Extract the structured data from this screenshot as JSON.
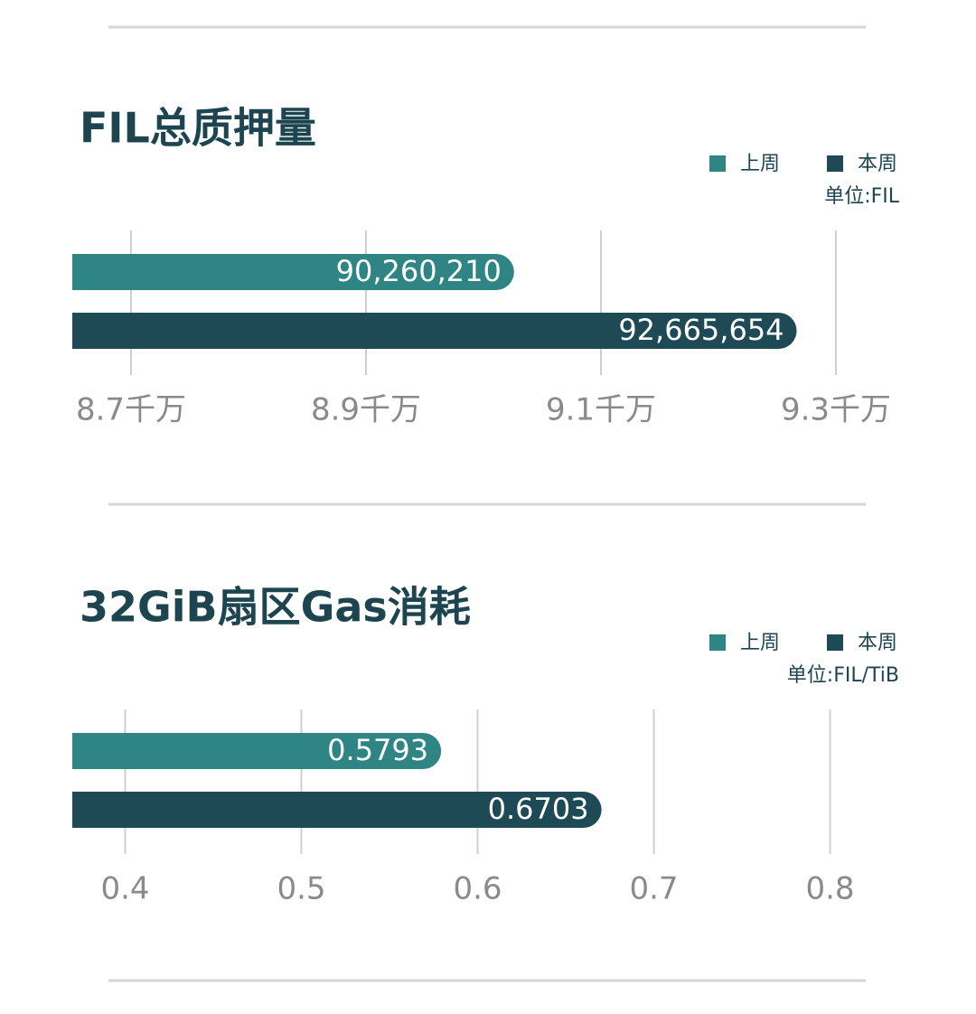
{
  "chart_data": [
    {
      "type": "bar",
      "orientation": "horizontal",
      "title": "FIL总质押量",
      "unit_label": "单位:FIL",
      "categories": [
        null
      ],
      "series": [
        {
          "name": "上周",
          "color": "#2f8484",
          "values": [
            90260210
          ],
          "value_labels": [
            "90,260,210"
          ]
        },
        {
          "name": "本周",
          "color": "#1d4a55",
          "values": [
            92665654
          ],
          "value_labels": [
            "92,665,654"
          ]
        }
      ],
      "xlim": [
        86500000,
        93500000
      ],
      "xticks": [
        {
          "value": 87000000,
          "label": "8.7千万"
        },
        {
          "value": 89000000,
          "label": "8.9千万"
        },
        {
          "value": 91000000,
          "label": "9.1千万"
        },
        {
          "value": 93000000,
          "label": "9.3千万"
        }
      ],
      "grid": true
    },
    {
      "type": "bar",
      "orientation": "horizontal",
      "title": "32GiB扇区Gas消耗",
      "unit_label": "单位:FIL/TiB",
      "categories": [
        null
      ],
      "series": [
        {
          "name": "上周",
          "color": "#2f8484",
          "values": [
            0.5793
          ]
        },
        {
          "name": "本周",
          "color": "#1d4a55",
          "values": [
            0.6703
          ]
        }
      ],
      "xlim": [
        0.37,
        0.83
      ],
      "xticks": [
        0.4,
        0.5,
        0.6,
        0.7,
        0.8
      ],
      "grid": true
    }
  ]
}
